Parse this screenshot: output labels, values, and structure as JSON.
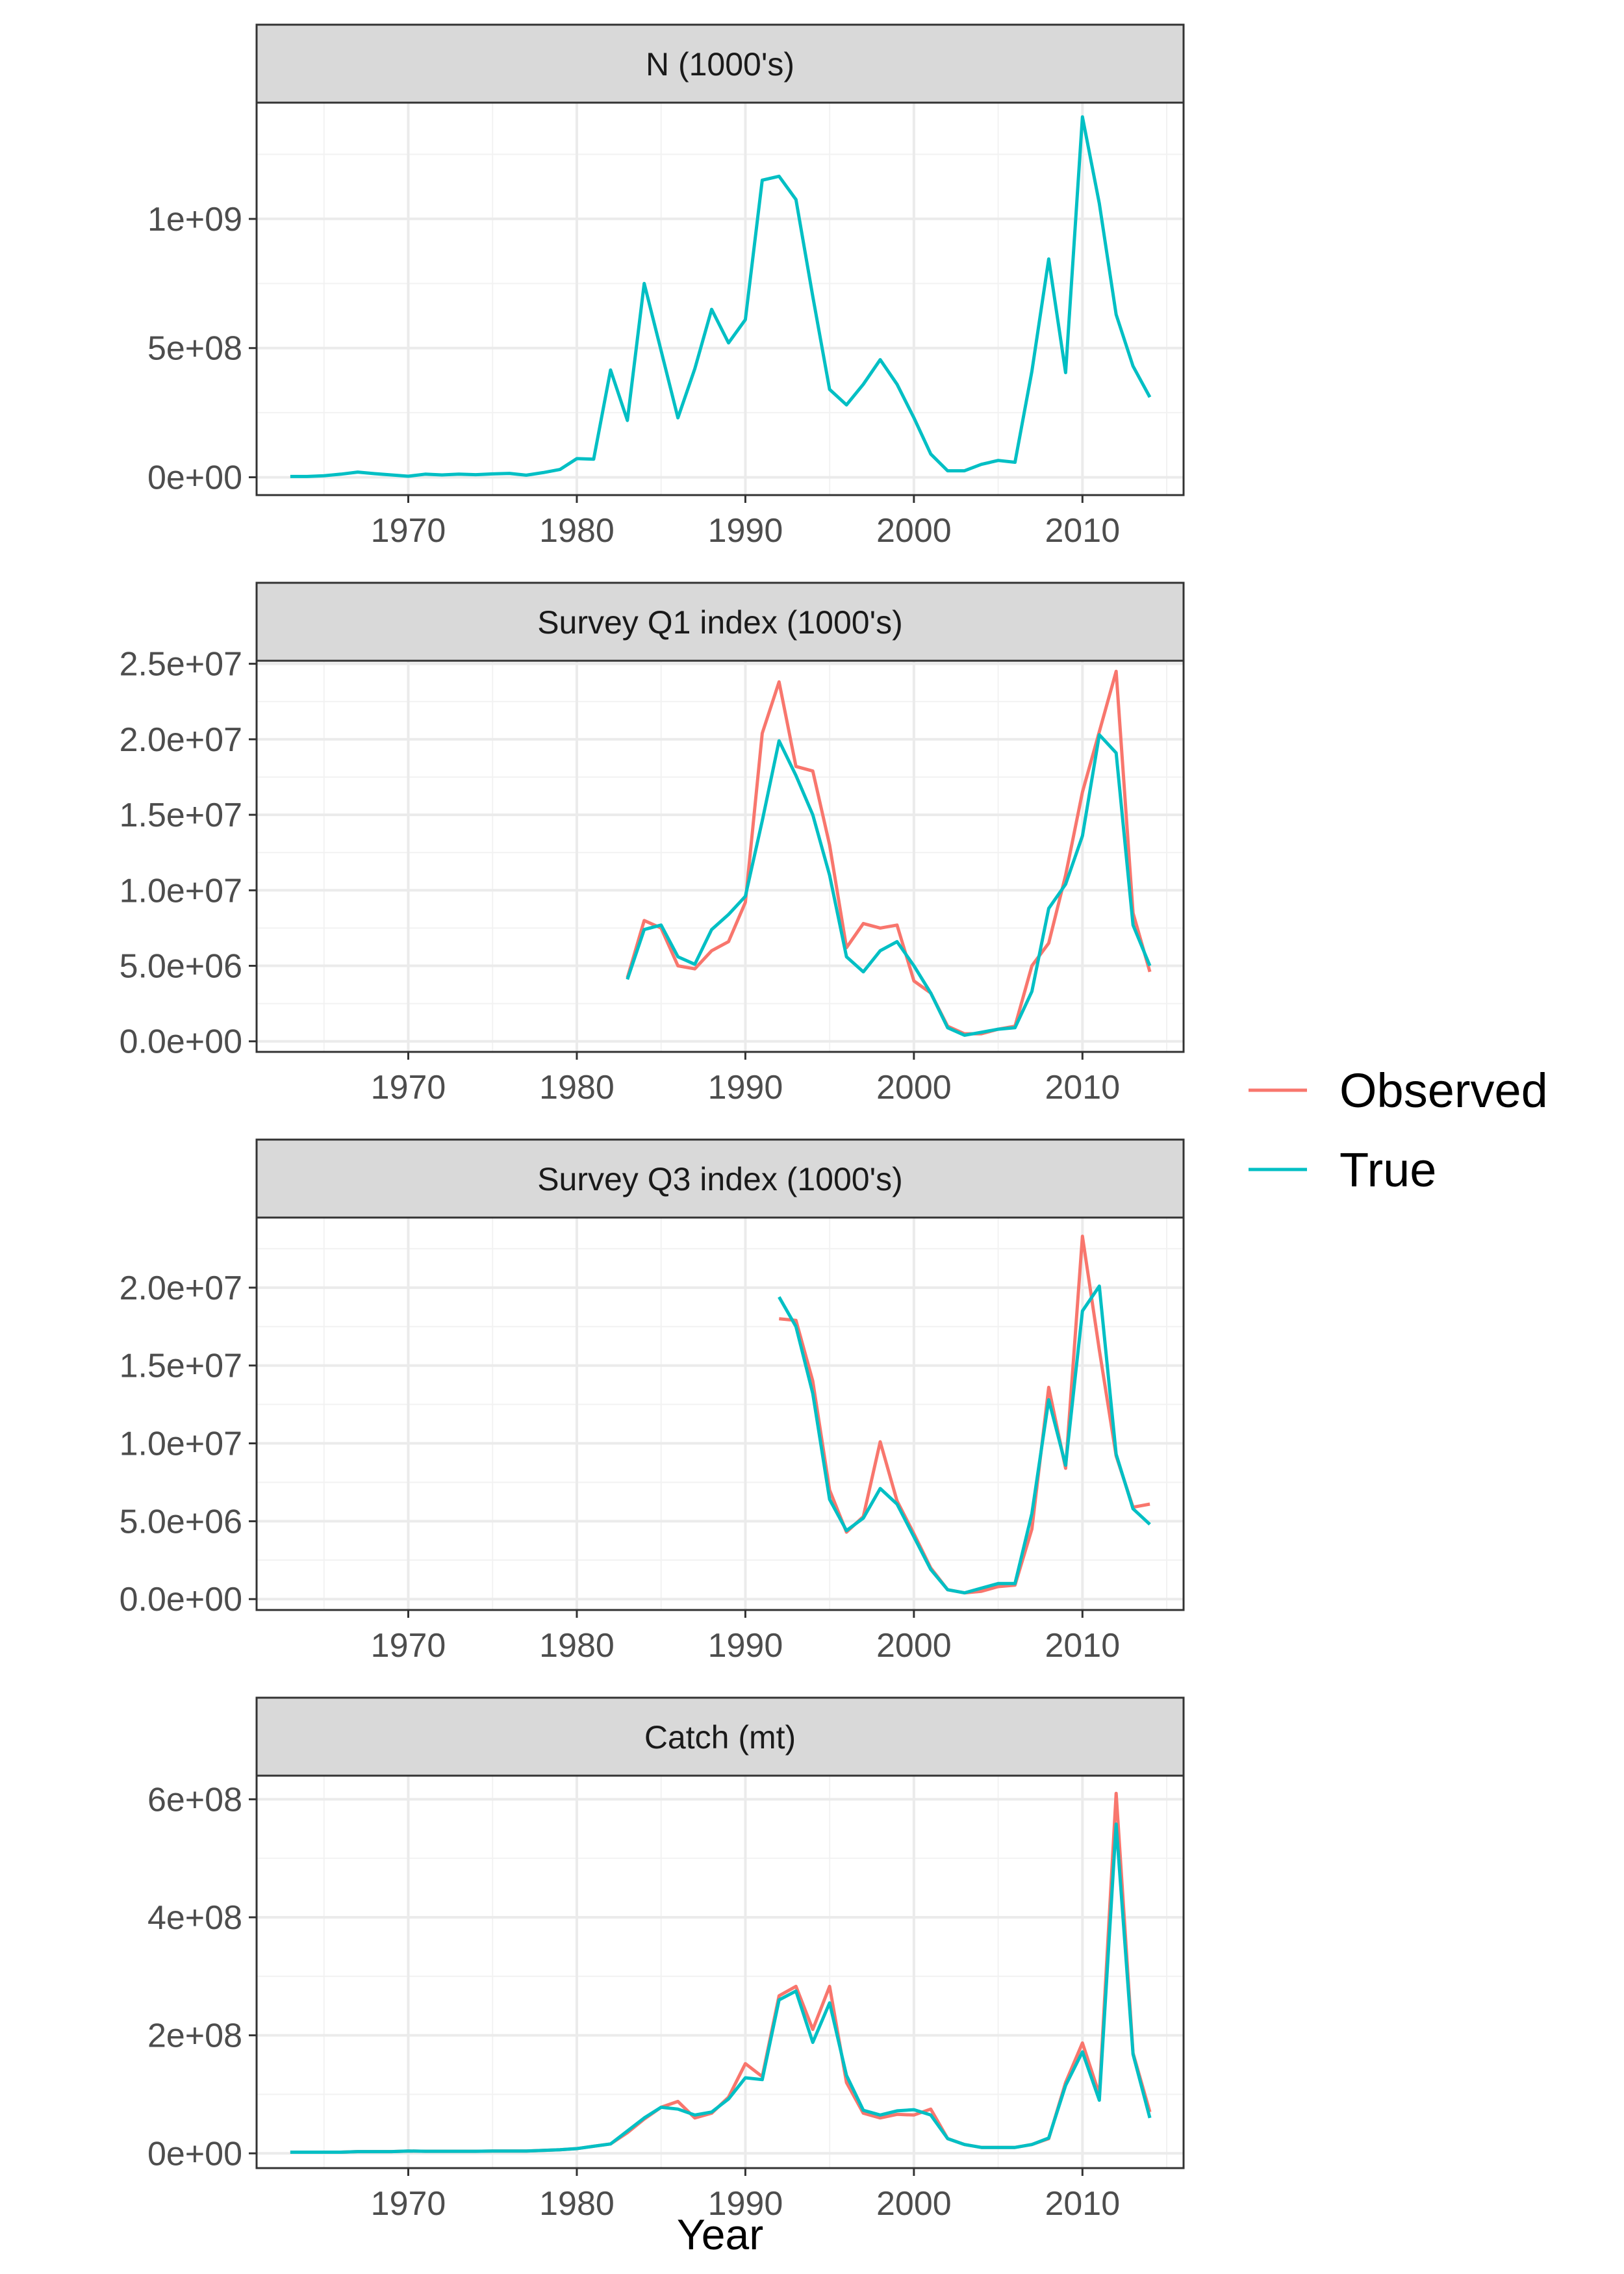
{
  "chart_data": {
    "type": "line",
    "x_label": "Year",
    "legend": {
      "placement": "right",
      "entries": [
        {
          "name": "Observed",
          "color": "#F8766D"
        },
        {
          "name": "True",
          "color": "#00BFC4"
        }
      ]
    },
    "x_range": [
      1961,
      2016
    ],
    "x_ticks": [
      1970,
      1980,
      1990,
      2000,
      2010
    ],
    "x_tick_labels": [
      "1970",
      "1980",
      "1990",
      "2000",
      "2010"
    ],
    "grid": true,
    "panels": [
      {
        "title": "N (1000's)",
        "y_range": [
          -69000000.0,
          1450000000.0
        ],
        "y_ticks": [
          0,
          500000000.0,
          1000000000.0
        ],
        "y_tick_labels": [
          "0e+00",
          "5e+08",
          "1e+09"
        ],
        "series": [
          {
            "name": "True",
            "x": [
              1963,
              1964,
              1965,
              1966,
              1967,
              1968,
              1969,
              1970,
              1971,
              1972,
              1973,
              1974,
              1975,
              1976,
              1977,
              1978,
              1979,
              1980,
              1981,
              1982,
              1983,
              1984,
              1985,
              1986,
              1987,
              1988,
              1989,
              1990,
              1991,
              1992,
              1993,
              1994,
              1995,
              1996,
              1997,
              1998,
              1999,
              2000,
              2001,
              2002,
              2003,
              2004,
              2005,
              2006,
              2007,
              2008,
              2009,
              2010,
              2011,
              2012,
              2013,
              2014
            ],
            "y": [
              3000000.0,
              3000000.0,
              6000000.0,
              12000000.0,
              20000000.0,
              14000000.0,
              9000000.0,
              4000000.0,
              12000000.0,
              9000000.0,
              12000000.0,
              10000000.0,
              13000000.0,
              15000000.0,
              8000000.0,
              18000000.0,
              30000000.0,
              72000000.0,
              70000000.0,
              415000000.0,
              220000000.0,
              750000000.0,
              490000000.0,
              230000000.0,
              420000000.0,
              650000000.0,
              520000000.0,
              610000000.0,
              1150000000.0,
              1165000000.0,
              1075000000.0,
              700000000.0,
              340000000.0,
              280000000.0,
              360000000.0,
              455000000.0,
              360000000.0,
              230000000.0,
              90000000.0,
              25000000.0,
              25000000.0,
              50000000.0,
              65000000.0,
              58000000.0,
              410000000.0,
              845000000.0,
              405000000.0,
              1395000000.0,
              1060000000.0,
              630000000.0,
              430000000.0,
              310000000.0
            ]
          }
        ]
      },
      {
        "title": "Survey Q1 index (1000's)",
        "y_range": [
          -700000.0,
          25200000.0
        ],
        "y_ticks": [
          0,
          5000000.0,
          10000000.0,
          15000000.0,
          20000000.0,
          25000000.0
        ],
        "y_tick_labels": [
          "0.0e+00",
          "5.0e+06",
          "1.0e+07",
          "1.5e+07",
          "2.0e+07",
          "2.5e+07"
        ],
        "series": [
          {
            "name": "Observed",
            "x": [
              1983,
              1984,
              1985,
              1986,
              1987,
              1988,
              1989,
              1990,
              1991,
              1992,
              1993,
              1994,
              1995,
              1996,
              1997,
              1998,
              1999,
              2000,
              2001,
              2002,
              2003,
              2004,
              2005,
              2006,
              2007,
              2008,
              2009,
              2010,
              2011,
              2012,
              2013,
              2014
            ],
            "y": [
              4200000.0,
              8000000.0,
              7500000.0,
              5000000.0,
              4800000.0,
              6000000.0,
              6600000.0,
              9200000.0,
              20400000.0,
              23800000.0,
              18200000.0,
              17900000.0,
              13000000.0,
              6200000.0,
              7800000.0,
              7500000.0,
              7700000.0,
              4000000.0,
              3200000.0,
              1000000.0,
              500000.0,
              500000.0,
              800000.0,
              1000000.0,
              5000000.0,
              6500000.0,
              11000000.0,
              16500000.0,
              20500000.0,
              24500000.0,
              8500000.0,
              4600000.0
            ]
          },
          {
            "name": "True",
            "x": [
              1983,
              1984,
              1985,
              1986,
              1987,
              1988,
              1989,
              1990,
              1991,
              1992,
              1993,
              1994,
              1995,
              1996,
              1997,
              1998,
              1999,
              2000,
              2001,
              2002,
              2003,
              2004,
              2005,
              2006,
              2007,
              2008,
              2009,
              2010,
              2011,
              2012,
              2013,
              2014
            ],
            "y": [
              4100000.0,
              7400000.0,
              7700000.0,
              5600000.0,
              5100000.0,
              7400000.0,
              8400000.0,
              9600000.0,
              14600000.0,
              19900000.0,
              17600000.0,
              15000000.0,
              11000000.0,
              5600000.0,
              4600000.0,
              6000000.0,
              6600000.0,
              5000000.0,
              3200000.0,
              900000.0,
              400000.0,
              600000.0,
              800000.0,
              900000.0,
              3300000.0,
              8800000.0,
              10400000.0,
              13600000.0,
              20300000.0,
              19100000.0,
              7700000.0,
              5000000.0
            ]
          }
        ]
      },
      {
        "title": "Survey Q3 index (1000's)",
        "y_range": [
          -700000.0,
          24500000.0
        ],
        "y_ticks": [
          0,
          5000000.0,
          10000000.0,
          15000000.0,
          20000000.0
        ],
        "y_tick_labels": [
          "0.0e+00",
          "5.0e+06",
          "1.0e+07",
          "1.5e+07",
          "2.0e+07"
        ],
        "series": [
          {
            "name": "Observed",
            "x": [
              1992,
              1993,
              1994,
              1995,
              1996,
              1997,
              1998,
              1999,
              2000,
              2001,
              2002,
              2003,
              2004,
              2005,
              2006,
              2007,
              2008,
              2009,
              2010,
              2011,
              2012,
              2013,
              2014
            ],
            "y": [
              18000000.0,
              17900000.0,
              14000000.0,
              7000000.0,
              4300000.0,
              5300000.0,
              10100000.0,
              6300000.0,
              4200000.0,
              2000000.0,
              600000.0,
              400000.0,
              500000.0,
              800000.0,
              900000.0,
              4500000.0,
              13600000.0,
              8400000.0,
              23300000.0,
              16000000.0,
              9200000.0,
              5900000.0,
              6100000.0
            ]
          },
          {
            "name": "True",
            "x": [
              1992,
              1993,
              1994,
              1995,
              1996,
              1997,
              1998,
              1999,
              2000,
              2001,
              2002,
              2003,
              2004,
              2005,
              2006,
              2007,
              2008,
              2009,
              2010,
              2011,
              2012,
              2013,
              2014
            ],
            "y": [
              19400000.0,
              17500000.0,
              13200000.0,
              6400000.0,
              4400000.0,
              5200000.0,
              7100000.0,
              6100000.0,
              4000000.0,
              1900000.0,
              600000.0,
              400000.0,
              700000.0,
              1000000.0,
              1000000.0,
              5500000.0,
              12800000.0,
              8600000.0,
              18500000.0,
              20100000.0,
              9300000.0,
              5800000.0,
              4800000.0
            ]
          }
        ]
      },
      {
        "title": "Catch (mt)",
        "y_range": [
          -25000000.0,
          640000000.0
        ],
        "y_ticks": [
          0,
          200000000.0,
          400000000.0,
          600000000.0
        ],
        "y_tick_labels": [
          "0e+00",
          "2e+08",
          "4e+08",
          "6e+08"
        ],
        "series": [
          {
            "name": "Observed",
            "x": [
              1963,
              1964,
              1965,
              1966,
              1967,
              1968,
              1969,
              1970,
              1971,
              1972,
              1973,
              1974,
              1975,
              1976,
              1977,
              1978,
              1979,
              1980,
              1981,
              1982,
              1983,
              1984,
              1985,
              1986,
              1987,
              1988,
              1989,
              1990,
              1991,
              1992,
              1993,
              1994,
              1995,
              1996,
              1997,
              1998,
              1999,
              2000,
              2001,
              2002,
              2003,
              2004,
              2005,
              2006,
              2007,
              2008,
              2009,
              2010,
              2011,
              2012,
              2013,
              2014
            ],
            "y": [
              2000000.0,
              2000000.0,
              2000000.0,
              2000000.0,
              3000000.0,
              3000000.0,
              3000000.0,
              4000000.0,
              3500000.0,
              3500000.0,
              3500000.0,
              3500000.0,
              4000000.0,
              4000000.0,
              4000000.0,
              5000000.0,
              6000000.0,
              8000000.0,
              12000000.0,
              16000000.0,
              35000000.0,
              58000000.0,
              78000000.0,
              88000000.0,
              60000000.0,
              68000000.0,
              95000000.0,
              152000000.0,
              130000000.0,
              267000000.0,
              283000000.0,
              210000000.0,
              283000000.0,
              120000000.0,
              68000000.0,
              60000000.0,
              66000000.0,
              65000000.0,
              75000000.0,
              25000000.0,
              15000000.0,
              10000000.0,
              10000000.0,
              10000000.0,
              15000000.0,
              25000000.0,
              120000000.0,
              187000000.0,
              100000000.0,
              610000000.0,
              170000000.0,
              70000000.0
            ]
          },
          {
            "name": "True",
            "x": [
              1963,
              1964,
              1965,
              1966,
              1967,
              1968,
              1969,
              1970,
              1971,
              1972,
              1973,
              1974,
              1975,
              1976,
              1977,
              1978,
              1979,
              1980,
              1981,
              1982,
              1983,
              1984,
              1985,
              1986,
              1987,
              1988,
              1989,
              1990,
              1991,
              1992,
              1993,
              1994,
              1995,
              1996,
              1997,
              1998,
              1999,
              2000,
              2001,
              2002,
              2003,
              2004,
              2005,
              2006,
              2007,
              2008,
              2009,
              2010,
              2011,
              2012,
              2013,
              2014
            ],
            "y": [
              2000000.0,
              2000000.0,
              2000000.0,
              2000000.0,
              3000000.0,
              3000000.0,
              3000000.0,
              4000000.0,
              3500000.0,
              3500000.0,
              3500000.0,
              3500000.0,
              4000000.0,
              4000000.0,
              4000000.0,
              5000000.0,
              6000000.0,
              8000000.0,
              12000000.0,
              16000000.0,
              38000000.0,
              60000000.0,
              78000000.0,
              75000000.0,
              65000000.0,
              70000000.0,
              92000000.0,
              128000000.0,
              125000000.0,
              260000000.0,
              275000000.0,
              188000000.0,
              255000000.0,
              132000000.0,
              73000000.0,
              65000000.0,
              72000000.0,
              74000000.0,
              65000000.0,
              25000000.0,
              15000000.0,
              10000000.0,
              10000000.0,
              10000000.0,
              15000000.0,
              26000000.0,
              115000000.0,
              172000000.0,
              90000000.0,
              558000000.0,
              168000000.0,
              60000000.0
            ]
          }
        ]
      }
    ]
  }
}
